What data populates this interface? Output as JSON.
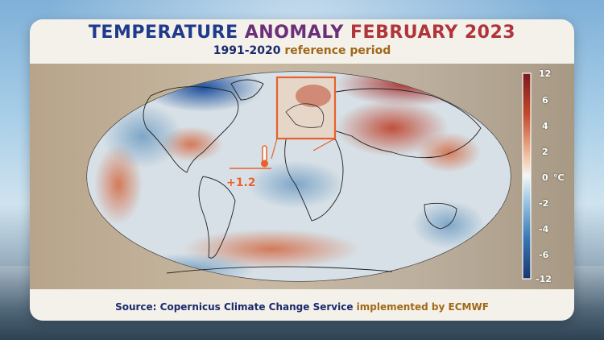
{
  "title": {
    "part1": "TEMPERATURE ",
    "part2": "ANOMALY ",
    "part3": "FEBRUARY 2023"
  },
  "subtitle": {
    "part1": "1991-2020 ",
    "part2": "reference period"
  },
  "europe_anomaly": "+1.2",
  "colorbar": {
    "ticks": [
      "12",
      "6",
      "4",
      "2",
      "0",
      "-2",
      "-4",
      "-6",
      "-12"
    ],
    "unit": "°C"
  },
  "source": {
    "part1": "Source: Copernicus Climate Change Service ",
    "part2": "implemented by ECMWF"
  },
  "colors": {
    "warm": "#b0343a",
    "cold": "#1f4f9a",
    "neutral": "#dfe6ea",
    "accent": "#e8602c"
  }
}
